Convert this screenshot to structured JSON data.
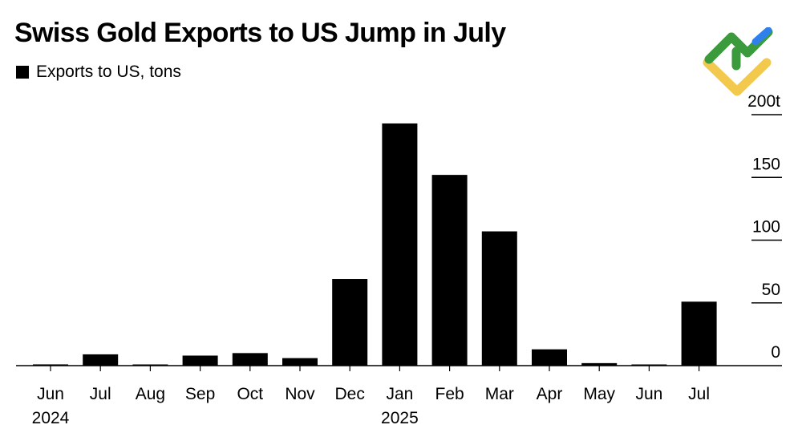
{
  "title": "Swiss Gold Exports to US Jump in July",
  "legend": {
    "label": "Exports to US, tons",
    "color": "#000000"
  },
  "colors": {
    "bar": "#000000",
    "grid": "#000000",
    "logo_green": "#3a9a3c",
    "logo_yellow": "#f2c94c",
    "logo_blue": "#2f80ed"
  },
  "logo": {
    "name": "green-yellow-blue-brand-logo"
  },
  "chart_data": {
    "type": "bar",
    "title": "Swiss Gold Exports to US Jump in July",
    "categories": [
      "Jun",
      "Jul",
      "Aug",
      "Sep",
      "Oct",
      "Nov",
      "Dec",
      "Jan",
      "Feb",
      "Mar",
      "Apr",
      "May",
      "Jun",
      "Jul"
    ],
    "year_labels": [
      "2024",
      "",
      "",
      "",
      "",
      "",
      "",
      "2025",
      "",
      "",
      "",
      "",
      "",
      ""
    ],
    "series": [
      {
        "name": "Exports to US, tons",
        "values": [
          1,
          9,
          0.5,
          8,
          10,
          6,
          69,
          193,
          152,
          107,
          13,
          2,
          0.5,
          51
        ]
      }
    ],
    "xlabel": "",
    "ylabel": "tons",
    "ylim": [
      0,
      200
    ],
    "yticks": [
      0,
      50,
      100,
      150,
      200
    ],
    "ytick_labels": [
      "0",
      "50",
      "100",
      "150",
      "200t"
    ],
    "grid": true,
    "legend_position": "top-left"
  }
}
